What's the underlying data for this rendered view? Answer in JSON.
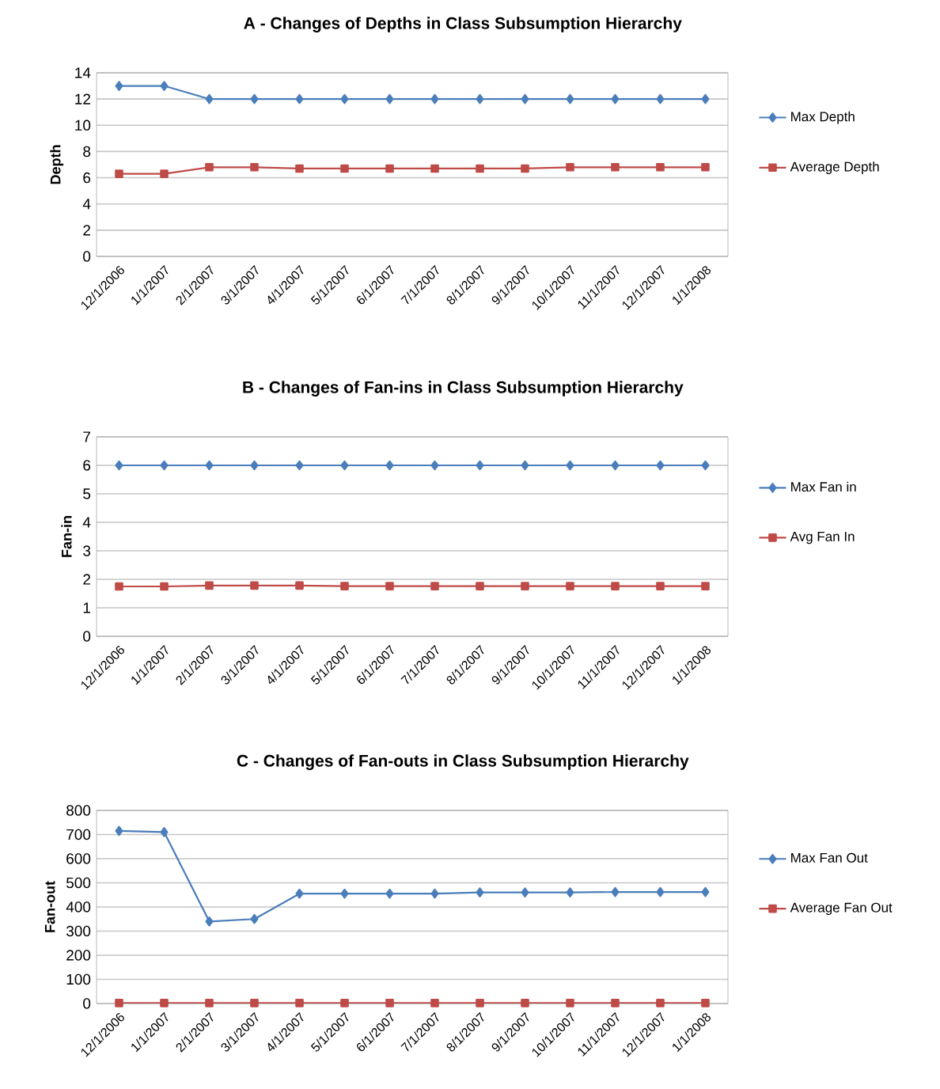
{
  "chart_data": [
    {
      "type": "line",
      "title": "A - Changes of Depths in Class Subsumption Hierarchy",
      "ylabel": "Depth",
      "categories": [
        "12/1/2006",
        "1/1/2007",
        "2/1/2007",
        "3/1/2007",
        "4/1/2007",
        "5/1/2007",
        "6/1/2007",
        "7/1/2007",
        "8/1/2007",
        "9/1/2007",
        "10/1/2007",
        "11/1/2007",
        "12/1/2007",
        "1/1/2008"
      ],
      "ylim": [
        0,
        14
      ],
      "yticks": [
        0,
        2,
        4,
        6,
        8,
        10,
        12,
        14
      ],
      "grid": "y",
      "legend": "right",
      "series": [
        {
          "name": "Max Depth",
          "color": "#4a7ebb",
          "marker": "diamond",
          "values": [
            13,
            13,
            12,
            12,
            12,
            12,
            12,
            12,
            12,
            12,
            12,
            12,
            12,
            12
          ]
        },
        {
          "name": "Average Depth",
          "color": "#be4b48",
          "marker": "square",
          "values": [
            6.3,
            6.3,
            6.8,
            6.8,
            6.7,
            6.7,
            6.7,
            6.7,
            6.7,
            6.7,
            6.8,
            6.8,
            6.8,
            6.8
          ]
        }
      ]
    },
    {
      "type": "line",
      "title": "B -  Changes of Fan-ins in Class Subsumption Hierarchy",
      "ylabel": "Fan-in",
      "categories": [
        "12/1/2006",
        "1/1/2007",
        "2/1/2007",
        "3/1/2007",
        "4/1/2007",
        "5/1/2007",
        "6/1/2007",
        "7/1/2007",
        "8/1/2007",
        "9/1/2007",
        "10/1/2007",
        "11/1/2007",
        "12/1/2007",
        "1/1/2008"
      ],
      "ylim": [
        0,
        7
      ],
      "yticks": [
        0,
        1,
        2,
        3,
        4,
        5,
        6,
        7
      ],
      "grid": "y",
      "legend": "right",
      "series": [
        {
          "name": "Max Fan in",
          "color": "#4a7ebb",
          "marker": "diamond",
          "values": [
            6,
            6,
            6,
            6,
            6,
            6,
            6,
            6,
            6,
            6,
            6,
            6,
            6,
            6
          ]
        },
        {
          "name": "Avg Fan In",
          "color": "#be4b48",
          "marker": "square",
          "values": [
            1.75,
            1.75,
            1.78,
            1.78,
            1.78,
            1.76,
            1.76,
            1.76,
            1.76,
            1.76,
            1.76,
            1.76,
            1.76,
            1.76
          ]
        }
      ]
    },
    {
      "type": "line",
      "title": "C - Changes of Fan-outs in Class Subsumption Hierarchy",
      "ylabel": "Fan-out",
      "categories": [
        "12/1/2006",
        "1/1/2007",
        "2/1/2007",
        "3/1/2007",
        "4/1/2007",
        "5/1/2007",
        "6/1/2007",
        "7/1/2007",
        "8/1/2007",
        "9/1/2007",
        "10/1/2007",
        "11/1/2007",
        "12/1/2007",
        "1/1/2008"
      ],
      "ylim": [
        0,
        800
      ],
      "yticks": [
        0,
        100,
        200,
        300,
        400,
        500,
        600,
        700,
        800
      ],
      "grid": "y",
      "legend": "right",
      "series": [
        {
          "name": "Max Fan Out",
          "color": "#4a7ebb",
          "marker": "diamond",
          "values": [
            715,
            710,
            340,
            350,
            455,
            455,
            455,
            455,
            460,
            460,
            460,
            462,
            462,
            462
          ]
        },
        {
          "name": "Average Fan Out",
          "color": "#be4b48",
          "marker": "square",
          "values": [
            2,
            2,
            2,
            2,
            2,
            2,
            2,
            2,
            2,
            2,
            2,
            2,
            2,
            2
          ]
        }
      ]
    }
  ]
}
